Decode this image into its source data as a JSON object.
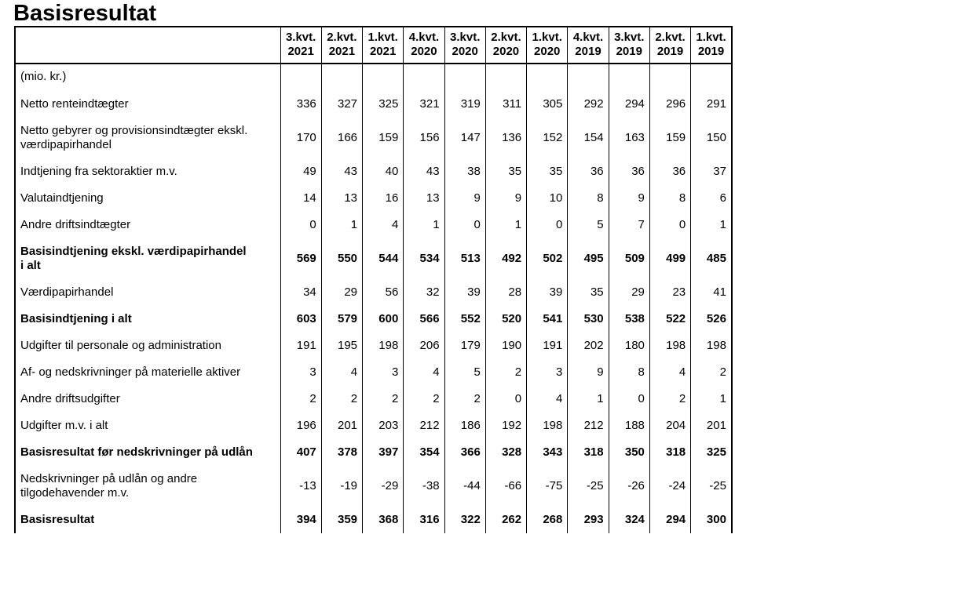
{
  "page": {
    "title": "Basisresultat"
  },
  "table": {
    "unit_label": "(mio. kr.)",
    "columns": [
      "3.kvt.\n2021",
      "2.kvt.\n2021",
      "1.kvt.\n2021",
      "4.kvt.\n2020",
      "3.kvt.\n2020",
      "2.kvt.\n2020",
      "1.kvt.\n2020",
      "4.kvt.\n2019",
      "3.kvt.\n2019",
      "2.kvt.\n2019",
      "1.kvt.\n2019"
    ],
    "rows": [
      {
        "label": "Netto renteindtægter",
        "bold": false,
        "values": [
          336,
          327,
          325,
          321,
          319,
          311,
          305,
          292,
          294,
          296,
          291
        ]
      },
      {
        "label": "Netto gebyrer og provisionsindtægter ekskl.\nværdipapirhandel",
        "bold": false,
        "values": [
          170,
          166,
          159,
          156,
          147,
          136,
          152,
          154,
          163,
          159,
          150
        ]
      },
      {
        "label": "Indtjening fra sektoraktier m.v.",
        "bold": false,
        "values": [
          49,
          43,
          40,
          43,
          38,
          35,
          35,
          36,
          36,
          36,
          37
        ]
      },
      {
        "label": "Valutaindtjening",
        "bold": false,
        "values": [
          14,
          13,
          16,
          13,
          9,
          9,
          10,
          8,
          9,
          8,
          6
        ]
      },
      {
        "label": "Andre driftsindtægter",
        "bold": false,
        "values": [
          0,
          1,
          4,
          1,
          0,
          1,
          0,
          5,
          7,
          0,
          1
        ]
      },
      {
        "label": "Basisindtjening ekskl. værdipapirhandel\ni alt",
        "bold": true,
        "values": [
          569,
          550,
          544,
          534,
          513,
          492,
          502,
          495,
          509,
          499,
          485
        ]
      },
      {
        "label": "Værdipapirhandel",
        "bold": false,
        "values": [
          34,
          29,
          56,
          32,
          39,
          28,
          39,
          35,
          29,
          23,
          41
        ]
      },
      {
        "label": "Basisindtjening i alt",
        "bold": true,
        "values": [
          603,
          579,
          600,
          566,
          552,
          520,
          541,
          530,
          538,
          522,
          526
        ]
      },
      {
        "label": "Udgifter til personale og administration",
        "bold": false,
        "values": [
          191,
          195,
          198,
          206,
          179,
          190,
          191,
          202,
          180,
          198,
          198
        ]
      },
      {
        "label": "Af- og nedskrivninger på materielle aktiver",
        "bold": false,
        "values": [
          3,
          4,
          3,
          4,
          5,
          2,
          3,
          9,
          8,
          4,
          2
        ]
      },
      {
        "label": "Andre driftsudgifter",
        "bold": false,
        "values": [
          2,
          2,
          2,
          2,
          2,
          0,
          4,
          1,
          0,
          2,
          1
        ]
      },
      {
        "label": "Udgifter m.v. i alt",
        "bold": false,
        "values": [
          196,
          201,
          203,
          212,
          186,
          192,
          198,
          212,
          188,
          204,
          201
        ]
      },
      {
        "label": "Basisresultat før nedskrivninger på udlån",
        "bold": true,
        "values": [
          407,
          378,
          397,
          354,
          366,
          328,
          343,
          318,
          350,
          318,
          325
        ]
      },
      {
        "label": "Nedskrivninger på udlån og andre\ntilgodehavender m.v.",
        "bold": false,
        "values": [
          -13,
          -19,
          -29,
          -38,
          -44,
          -66,
          -75,
          -25,
          -26,
          -24,
          -25
        ]
      },
      {
        "label": "Basisresultat",
        "bold": true,
        "values": [
          394,
          359,
          368,
          316,
          322,
          262,
          268,
          293,
          324,
          294,
          300
        ]
      }
    ]
  }
}
